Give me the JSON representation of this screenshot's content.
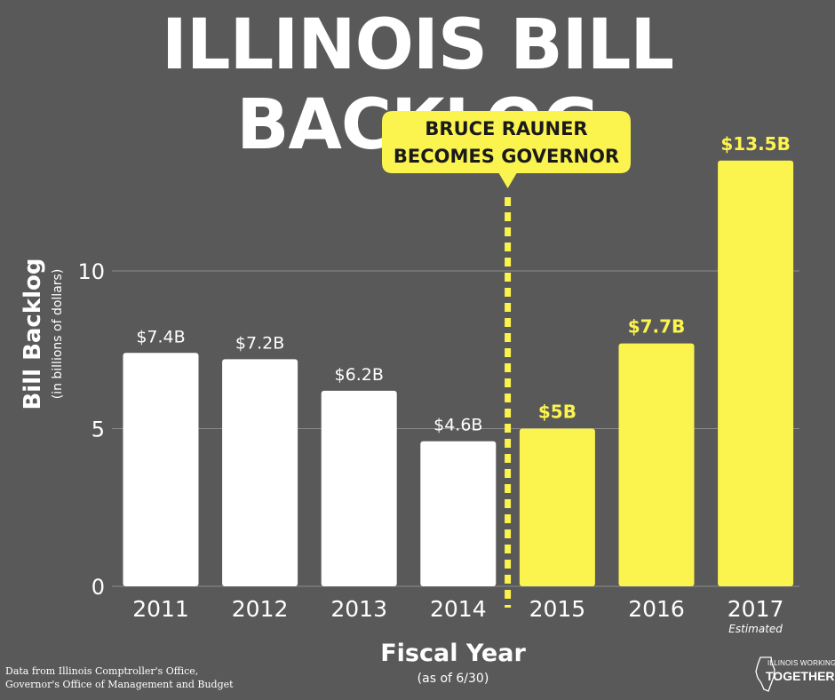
{
  "title": "ILLINOIS BILL BACKLOG",
  "colors": {
    "background": "#595959",
    "before": "#ffffff",
    "after": "#fbf44f",
    "gridline": "#8a8a8a",
    "callout_text": "#1a1a1a"
  },
  "annotation": {
    "line1": "BRUCE RAUNER",
    "line2": "BECOMES GOVERNOR"
  },
  "source": {
    "line1": "Data from Illinois Comptroller's Office,",
    "line2": "Governor's Office of Management and Budget"
  },
  "logo": {
    "line1": "ILLINOIS WORKING",
    "line2": "TOGETHER"
  },
  "chart_data": {
    "type": "bar",
    "categories": [
      "2011",
      "2012",
      "2013",
      "2014",
      "2015",
      "2016",
      "2017"
    ],
    "category_notes": [
      "",
      "",
      "",
      "",
      "",
      "",
      "Estimated"
    ],
    "values": [
      7.4,
      7.2,
      6.2,
      4.6,
      5,
      7.7,
      13.5
    ],
    "value_labels": [
      "$7.4B",
      "$7.2B",
      "$6.2B",
      "$4.6B",
      "$5B",
      "$7.7B",
      "$13.5B"
    ],
    "highlighted": [
      false,
      false,
      false,
      false,
      true,
      true,
      true
    ],
    "title": "ILLINOIS BILL BACKLOG",
    "xlabel": "Fiscal Year",
    "xlabel_sub": "(as of 6/30)",
    "ylabel": "Bill Backlog",
    "ylabel_sub": "(in billions of dollars)",
    "yticks": [
      0,
      5,
      10
    ],
    "ylim": [
      0,
      14
    ],
    "grid": true,
    "legend": "none",
    "divider_between": [
      "2014",
      "2015"
    ]
  }
}
